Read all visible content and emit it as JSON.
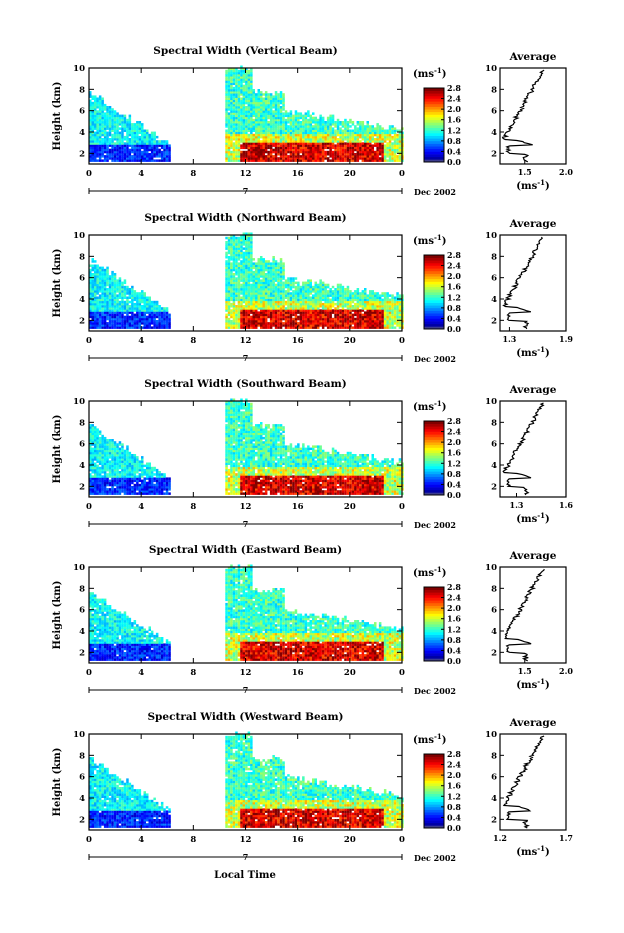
{
  "figure": {
    "bottom_xlabel": "Local Time"
  },
  "chart_data": [
    {
      "type": "heatmap",
      "title": "Spectral Width (Vertical Beam)",
      "ylabel": "Height (km)",
      "xlim": [
        0,
        24
      ],
      "ylim": [
        1,
        10
      ],
      "x_ticks": [
        "0",
        "4",
        "8",
        "12",
        "16",
        "20",
        "0"
      ],
      "y_ticks": [
        "2",
        "4",
        "6",
        "8",
        "10"
      ],
      "date_label": "7",
      "date_suffix": "Dec 2002",
      "colorbar": {
        "unit": "(ms",
        "exp": "-1",
        "ticks": [
          "2.8",
          "2.4",
          "2.0",
          "1.6",
          "1.2",
          "0.8",
          "0.4",
          "0.0"
        ],
        "range": [
          0,
          2.8
        ]
      },
      "grid": false,
      "profile": {
        "title": "Average",
        "xlabel": "(ms",
        "xexp": "-1",
        "xlim": [
          1.2,
          2.0
        ],
        "x_ticks": [
          "1.5",
          "2.0"
        ],
        "y_ticks": [
          "2",
          "4",
          "6",
          "8",
          "10"
        ],
        "ylim": [
          1,
          10
        ]
      }
    },
    {
      "type": "heatmap",
      "title": "Spectral Width (Northward Beam)",
      "ylabel": "Height (km)",
      "xlim": [
        0,
        24
      ],
      "ylim": [
        1,
        10
      ],
      "x_ticks": [
        "0",
        "4",
        "8",
        "12",
        "16",
        "20",
        "0"
      ],
      "y_ticks": [
        "2",
        "4",
        "6",
        "8",
        "10"
      ],
      "date_label": "7",
      "date_suffix": "Dec 2002",
      "colorbar": {
        "unit": "(ms",
        "exp": "-1",
        "ticks": [
          "2.8",
          "2.4",
          "2.0",
          "1.6",
          "1.2",
          "0.8",
          "0.4",
          "0.0"
        ],
        "range": [
          0,
          2.8
        ]
      },
      "grid": false,
      "profile": {
        "title": "Average",
        "xlabel": "(ms",
        "xexp": "-1",
        "xlim": [
          1.2,
          1.9
        ],
        "x_ticks": [
          "1.3",
          "1.9"
        ],
        "y_ticks": [
          "2",
          "4",
          "6",
          "8",
          "10"
        ],
        "ylim": [
          1,
          10
        ]
      }
    },
    {
      "type": "heatmap",
      "title": "Spectral Width (Southward Beam)",
      "ylabel": "Height (km)",
      "xlim": [
        0,
        24
      ],
      "ylim": [
        1,
        10
      ],
      "x_ticks": [
        "0",
        "4",
        "8",
        "12",
        "16",
        "20",
        "0"
      ],
      "y_ticks": [
        "2",
        "4",
        "6",
        "8",
        "10"
      ],
      "date_label": "7",
      "date_suffix": "Dec 2002",
      "colorbar": {
        "unit": "(ms",
        "exp": "-1",
        "ticks": [
          "2.8",
          "2.4",
          "2.0",
          "1.6",
          "1.2",
          "0.8",
          "0.4",
          "0.0"
        ],
        "range": [
          0,
          2.8
        ]
      },
      "grid": false,
      "profile": {
        "title": "Average",
        "xlabel": "(ms",
        "xexp": "-1",
        "xlim": [
          1.2,
          1.6
        ],
        "x_ticks": [
          "1.3",
          "1.6"
        ],
        "y_ticks": [
          "2",
          "4",
          "6",
          "8",
          "10"
        ],
        "ylim": [
          1,
          10
        ]
      }
    },
    {
      "type": "heatmap",
      "title": "Spectral Width (Eastward Beam)",
      "ylabel": "Height (km)",
      "xlim": [
        0,
        24
      ],
      "ylim": [
        1,
        10
      ],
      "x_ticks": [
        "0",
        "4",
        "8",
        "12",
        "16",
        "20",
        "0"
      ],
      "y_ticks": [
        "2",
        "4",
        "6",
        "8",
        "10"
      ],
      "date_label": "7",
      "date_suffix": "Dec 2002",
      "colorbar": {
        "unit": "(ms",
        "exp": "-1",
        "ticks": [
          "2.8",
          "2.4",
          "2.0",
          "1.6",
          "1.2",
          "0.8",
          "0.4",
          "0.0"
        ],
        "range": [
          0,
          2.8
        ]
      },
      "grid": false,
      "profile": {
        "title": "Average",
        "xlabel": "(ms",
        "xexp": "-1",
        "xlim": [
          1.2,
          2.0
        ],
        "x_ticks": [
          "1.5",
          "2.0"
        ],
        "y_ticks": [
          "2",
          "4",
          "6",
          "8",
          "10"
        ],
        "ylim": [
          1,
          10
        ]
      }
    },
    {
      "type": "heatmap",
      "title": "Spectral Width (Westward Beam)",
      "ylabel": "Height (km)",
      "xlim": [
        0,
        24
      ],
      "ylim": [
        1,
        10
      ],
      "x_ticks": [
        "0",
        "4",
        "8",
        "12",
        "16",
        "20",
        "0"
      ],
      "y_ticks": [
        "2",
        "4",
        "6",
        "8",
        "10"
      ],
      "date_label": "7",
      "date_suffix": "Dec 2002",
      "colorbar": {
        "unit": "(ms",
        "exp": "-1",
        "ticks": [
          "2.8",
          "2.4",
          "2.0",
          "1.6",
          "1.2",
          "0.8",
          "0.4",
          "0.0"
        ],
        "range": [
          0,
          2.8
        ]
      },
      "grid": false,
      "profile": {
        "title": "Average",
        "xlabel": "(ms",
        "xexp": "-1",
        "xlim": [
          1.2,
          1.7
        ],
        "x_ticks": [
          "1.2",
          "1.7"
        ],
        "y_ticks": [
          "2",
          "4",
          "6",
          "8",
          "10"
        ],
        "ylim": [
          1,
          10
        ]
      }
    }
  ]
}
